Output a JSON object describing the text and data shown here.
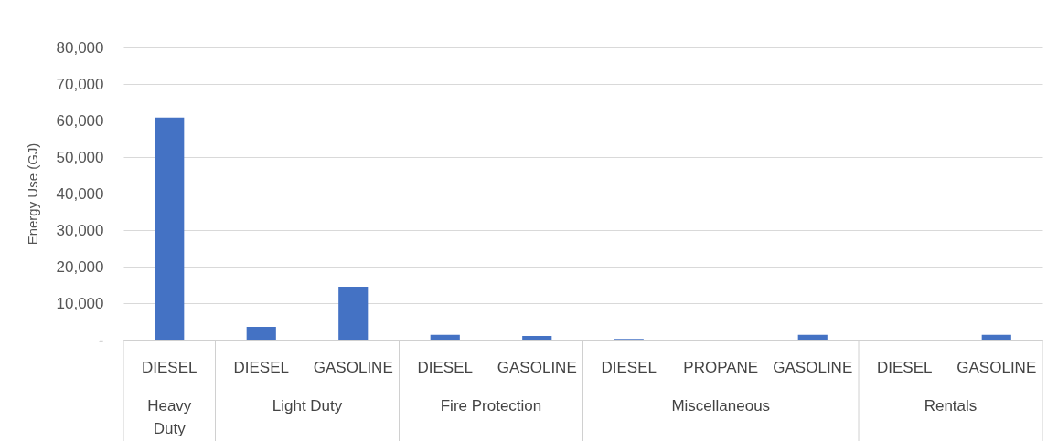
{
  "chart_data": {
    "type": "bar",
    "ylabel": "Energy Use (GJ)",
    "categories": [
      "DIESEL",
      "DIESEL",
      "GASOLINE",
      "DIESEL",
      "GASOLINE",
      "DIESEL",
      "PROPANE",
      "GASOLINE",
      "DIESEL",
      "GASOLINE"
    ],
    "values": [
      60800,
      3500,
      14500,
      1300,
      1000,
      200,
      0,
      1300,
      0,
      1300
    ],
    "color": "#4472c4",
    "ylim": [
      0,
      80000
    ],
    "yticks": [
      {
        "value": 0,
        "label": "-"
      },
      {
        "value": 10000,
        "label": "10,000"
      },
      {
        "value": 20000,
        "label": "20,000"
      },
      {
        "value": 30000,
        "label": "30,000"
      },
      {
        "value": 40000,
        "label": "40,000"
      },
      {
        "value": 50000,
        "label": "50,000"
      },
      {
        "value": 60000,
        "label": "60,000"
      },
      {
        "value": 70000,
        "label": "70,000"
      },
      {
        "value": 80000,
        "label": "80,000"
      }
    ],
    "grid": "y",
    "annotations": [
      "Heavy Duty",
      "Light Duty",
      "Fire Protection",
      "Miscellaneous",
      "Rentals"
    ]
  }
}
